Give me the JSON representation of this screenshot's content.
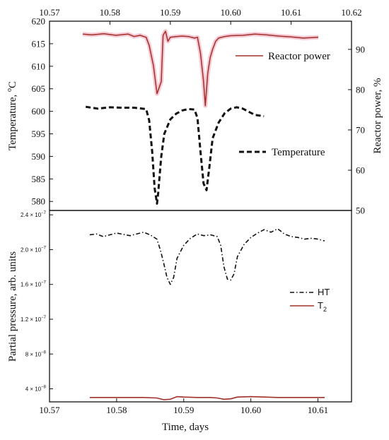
{
  "colors": {
    "power": "#a0302a",
    "power_band": "#f2b6c6",
    "black": "#111111",
    "t2": "#a0302a"
  },
  "chart_data": [
    {
      "type": "line",
      "panel": "top",
      "xlabel_top_ticks": [
        "10.57",
        "10.58",
        "10.59",
        "10.60",
        "10.61",
        "10.62"
      ],
      "x_top_range": [
        10.57,
        10.62
      ],
      "ylabel": "Temperature, °C",
      "ylabel_main": "Temperature, ",
      "ylabel_sup": "o",
      "ylabel_unit": "C",
      "ylim": [
        578,
        620
      ],
      "yticks": [
        "580",
        "585",
        "590",
        "595",
        "600",
        "605",
        "610",
        "615",
        "620"
      ],
      "y2label": "Reactor power, %",
      "y2lim": [
        50,
        97
      ],
      "y2ticks": [
        "50",
        "60",
        "70",
        "80",
        "90"
      ],
      "legend": [
        "Reactor power",
        "Temperature"
      ],
      "series": [
        {
          "name": "Reactor power",
          "axis": "right",
          "x": [
            10.5755,
            10.577,
            10.579,
            10.581,
            10.583,
            10.584,
            10.585,
            10.586,
            10.5865,
            10.5872,
            10.5878,
            10.5885,
            10.5888,
            10.5892,
            10.5896,
            10.59,
            10.591,
            10.592,
            10.593,
            10.594,
            10.5945,
            10.595,
            10.5955,
            10.5958,
            10.5962,
            10.5966,
            10.597,
            10.5975,
            10.598,
            10.599,
            10.6,
            10.602,
            10.604,
            10.606,
            10.608,
            10.61,
            10.612,
            10.6145
          ],
          "y": [
            93.8,
            93.6,
            93.9,
            93.5,
            93.8,
            93.2,
            93.5,
            93.0,
            91.0,
            86.0,
            79.0,
            82.0,
            93.5,
            94.5,
            92.0,
            93.0,
            93.2,
            93.3,
            93.2,
            92.8,
            93.0,
            89.0,
            82.0,
            76.0,
            84.0,
            88.0,
            90.0,
            92.0,
            92.8,
            93.2,
            93.4,
            93.5,
            93.8,
            93.6,
            93.3,
            93.1,
            92.8,
            93.0
          ]
        },
        {
          "name": "Temperature",
          "axis": "left",
          "x": [
            10.576,
            10.578,
            10.58,
            10.582,
            10.584,
            10.586,
            10.5865,
            10.587,
            10.5874,
            10.5878,
            10.588,
            10.5885,
            10.589,
            10.59,
            10.591,
            10.592,
            10.593,
            10.594,
            10.5945,
            10.595,
            10.5955,
            10.596,
            10.5965,
            10.597,
            10.598,
            10.599,
            10.6,
            10.601,
            10.602,
            10.603,
            10.604,
            10.6055
          ],
          "y": [
            601.0,
            600.6,
            600.9,
            600.8,
            600.8,
            600.5,
            598.0,
            591.0,
            583.0,
            579.5,
            582.0,
            590.0,
            595.0,
            598.2,
            599.5,
            600.2,
            600.5,
            600.4,
            598.5,
            591.0,
            584.0,
            582.5,
            588.0,
            594.0,
            597.5,
            599.6,
            600.6,
            600.9,
            600.6,
            599.9,
            599.2,
            598.9
          ]
        }
      ]
    },
    {
      "type": "line",
      "panel": "bottom",
      "xlabel": "Time, days",
      "xlim": [
        10.57,
        10.615
      ],
      "xticks": [
        "10.57",
        "10.58",
        "10.59",
        "10.60",
        "10.61"
      ],
      "ylabel": "Partial pressure, arb. units",
      "ylim": [
        2.5e-08,
        2.45e-07
      ],
      "yticks": [
        {
          "m": "4 × 10",
          "e": "−8",
          "v": 4e-08
        },
        {
          "m": "8 × 10",
          "e": "−8",
          "v": 8e-08
        },
        {
          "m": "1.2 × 10",
          "e": "−7",
          "v": 1.2e-07
        },
        {
          "m": "1.6 × 10",
          "e": "−7",
          "v": 1.6e-07
        },
        {
          "m": "2.0 × 10",
          "e": "−7",
          "v": 2e-07
        },
        {
          "m": "2.4 × 10",
          "e": "−7",
          "v": 2.4e-07
        }
      ],
      "legend": [
        "HT",
        "T"
      ],
      "legend_t2_sub": "2",
      "series": [
        {
          "name": "HT",
          "x": [
            10.576,
            10.577,
            10.578,
            10.58,
            10.582,
            10.584,
            10.585,
            10.586,
            10.5865,
            10.587,
            10.5875,
            10.588,
            10.5885,
            10.589,
            10.59,
            10.591,
            10.592,
            10.593,
            10.594,
            10.595,
            10.5955,
            10.596,
            10.5965,
            10.597,
            10.5975,
            10.598,
            10.599,
            10.6,
            10.601,
            10.602,
            10.603,
            10.604,
            10.605,
            10.606,
            10.607,
            10.608,
            10.609,
            10.61,
            10.611
          ],
          "y": [
            2.17e-07,
            2.18e-07,
            2.15e-07,
            2.19e-07,
            2.16e-07,
            2.2e-07,
            2.17e-07,
            2.12e-07,
            2e-07,
            1.85e-07,
            1.68e-07,
            1.6e-07,
            1.68e-07,
            1.9e-07,
            2.05e-07,
            2.13e-07,
            2.18e-07,
            2.16e-07,
            2.17e-07,
            2.15e-07,
            2.05e-07,
            1.8e-07,
            1.66e-07,
            1.65e-07,
            1.72e-07,
            1.92e-07,
            2.06e-07,
            2.14e-07,
            2.19e-07,
            2.23e-07,
            2.2e-07,
            2.24e-07,
            2.18e-07,
            2.15e-07,
            2.14e-07,
            2.12e-07,
            2.13e-07,
            2.12e-07,
            2.1e-07
          ]
        },
        {
          "name": "T2",
          "x": [
            10.576,
            10.58,
            10.584,
            10.586,
            10.587,
            10.588,
            10.589,
            10.59,
            10.592,
            10.594,
            10.595,
            10.596,
            10.597,
            10.598,
            10.6,
            10.604,
            10.608,
            10.611
          ],
          "y": [
            3e-08,
            3e-08,
            3e-08,
            2.95e-08,
            2.75e-08,
            2.8e-08,
            3.1e-08,
            3.05e-08,
            3e-08,
            3e-08,
            2.95e-08,
            2.8e-08,
            2.85e-08,
            3.05e-08,
            3.1e-08,
            3e-08,
            3e-08,
            3e-08
          ]
        }
      ]
    }
  ]
}
